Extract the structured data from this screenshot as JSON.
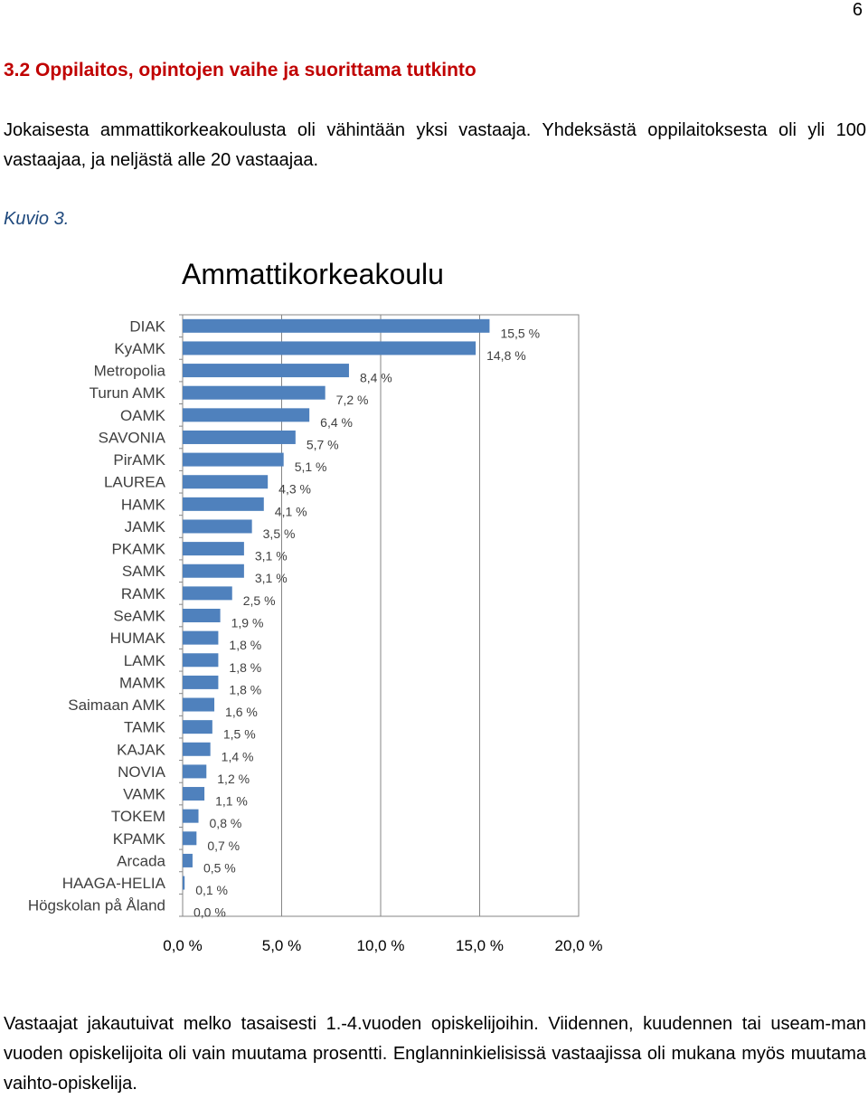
{
  "page": {
    "number": "6",
    "section_heading": "3.2 Oppilaitos, opintojen vaihe ja suorittama tutkinto",
    "paragraph1": "Jokaisesta ammattikorkeakoulusta oli vähintään yksi vastaaja. Yhdeksästä oppilaitoksesta oli yli 100 vastaajaa, ja neljästä alle 20 vastaajaa.",
    "figure_label": "Kuvio 3.",
    "paragraph2": "Vastaajat jakautuivat melko tasaisesti 1.-4.vuoden opiskelijoihin. Viidennen, kuudennen tai useam-man vuoden opiskelijoita oli vain muutama prosentti. Englanninkielisissä vastaajissa oli mukana myös muutama vaihto-opiskelija."
  },
  "chart_data": {
    "type": "bar",
    "orientation": "horizontal",
    "title": "Ammattikorkeakoulu",
    "categories": [
      "DIAK",
      "KyAMK",
      "Metropolia",
      "Turun AMK",
      "OAMK",
      "SAVONIA",
      "PirAMK",
      "LAUREA",
      "HAMK",
      "JAMK",
      "PKAMK",
      "SAMK",
      "RAMK",
      "SeAMK",
      "HUMAK",
      "LAMK",
      "MAMK",
      "Saimaan AMK",
      "TAMK",
      "KAJAK",
      "NOVIA",
      "VAMK",
      "TOKEM",
      "KPAMK",
      "Arcada",
      "HAAGA-HELIA",
      "Högskolan på Åland"
    ],
    "values": [
      15.5,
      14.8,
      8.4,
      7.2,
      6.4,
      5.7,
      5.1,
      4.3,
      4.1,
      3.5,
      3.1,
      3.1,
      2.5,
      1.9,
      1.8,
      1.8,
      1.8,
      1.6,
      1.5,
      1.4,
      1.2,
      1.1,
      0.8,
      0.7,
      0.5,
      0.1,
      0.0
    ],
    "value_labels": [
      "15,5 %",
      "14,8 %",
      "8,4 %",
      "7,2 %",
      "6,4 %",
      "5,7 %",
      "5,1 %",
      "4,3 %",
      "4,1 %",
      "3,5 %",
      "3,1 %",
      "3,1 %",
      "2,5 %",
      "1,9 %",
      "1,8 %",
      "1,8 %",
      "1,8 %",
      "1,6 %",
      "1,5 %",
      "1,4 %",
      "1,2 %",
      "1,1 %",
      "0,8 %",
      "0,7 %",
      "0,5 %",
      "0,1 %",
      "0,0 %"
    ],
    "xlim": [
      0,
      20
    ],
    "x_ticks": [
      0,
      5,
      10,
      15,
      20
    ],
    "x_tick_labels": [
      "0,0 %",
      "5,0 %",
      "10,0 %",
      "15,0 %",
      "20,0 %"
    ],
    "grid": true,
    "bar_color": "#4f81bd",
    "grid_color": "#868686"
  }
}
